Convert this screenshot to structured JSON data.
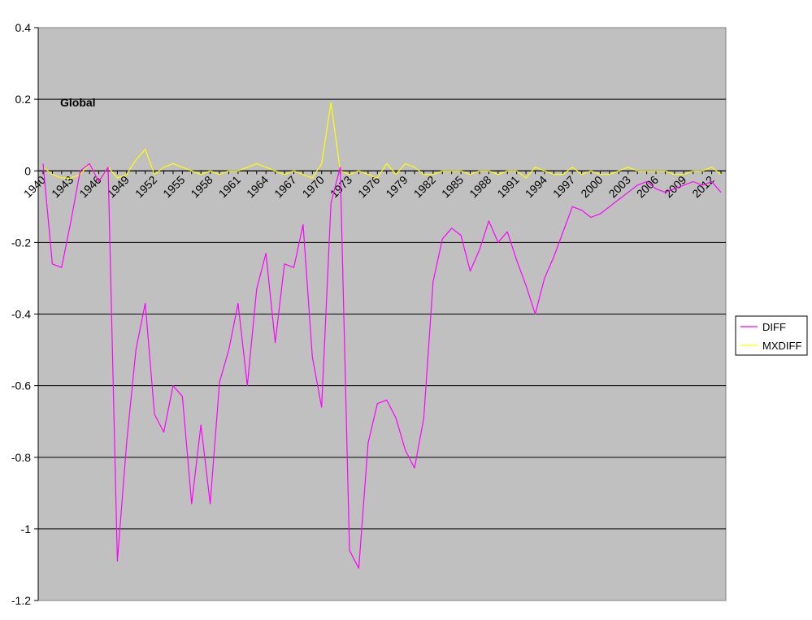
{
  "chart_data": {
    "type": "line",
    "title": "Global",
    "xlabel": "",
    "ylabel": "",
    "ylim": [
      -1.2,
      0.4
    ],
    "yticks": [
      0.4,
      0.2,
      0,
      -0.2,
      -0.4,
      -0.6,
      -0.8,
      -1,
      -1.2
    ],
    "ytick_labels": [
      "0.4",
      "0.2",
      "0",
      "-0.2",
      "-0.4",
      "-0.6",
      "-0.8",
      "-1",
      "-1.2"
    ],
    "x": [
      1940,
      1941,
      1942,
      1943,
      1944,
      1945,
      1946,
      1947,
      1948,
      1949,
      1950,
      1951,
      1952,
      1953,
      1954,
      1955,
      1956,
      1957,
      1958,
      1959,
      1960,
      1961,
      1962,
      1963,
      1964,
      1965,
      1966,
      1967,
      1968,
      1969,
      1970,
      1971,
      1972,
      1973,
      1974,
      1975,
      1976,
      1977,
      1978,
      1979,
      1980,
      1981,
      1982,
      1983,
      1984,
      1985,
      1986,
      1987,
      1988,
      1989,
      1990,
      1991,
      1992,
      1993,
      1994,
      1995,
      1996,
      1997,
      1998,
      1999,
      2000,
      2001,
      2002,
      2003,
      2004,
      2005,
      2006,
      2007,
      2008,
      2009,
      2010,
      2011,
      2012,
      2013
    ],
    "xticks": [
      1940,
      1943,
      1946,
      1949,
      1952,
      1955,
      1958,
      1961,
      1964,
      1967,
      1970,
      1973,
      1976,
      1979,
      1982,
      1985,
      1988,
      1991,
      1994,
      1997,
      2000,
      2003,
      2006,
      2009,
      2012
    ],
    "xtick_labels": [
      "1940",
      "1943",
      "1946",
      "1949",
      "1952",
      "1955",
      "1958",
      "1961",
      "1964",
      "1967",
      "1970",
      "1973",
      "1976",
      "1979",
      "1982",
      "1985",
      "1988",
      "1991",
      "1994",
      "1997",
      "2000",
      "2003",
      "2006",
      "2009",
      "2012"
    ],
    "series": [
      {
        "name": "DIFF",
        "color": "#ff00ff",
        "values": [
          0.02,
          -0.26,
          -0.27,
          -0.14,
          0.0,
          0.02,
          -0.03,
          0.01,
          -1.09,
          -0.76,
          -0.5,
          -0.37,
          -0.68,
          -0.73,
          -0.6,
          -0.63,
          -0.93,
          -0.71,
          -0.93,
          -0.59,
          -0.5,
          -0.37,
          -0.6,
          -0.33,
          -0.23,
          -0.48,
          -0.26,
          -0.27,
          -0.15,
          -0.52,
          -0.66,
          -0.09,
          0.01,
          -1.06,
          -1.11,
          -0.76,
          -0.65,
          -0.64,
          -0.69,
          -0.78,
          -0.83,
          -0.69,
          -0.31,
          -0.19,
          -0.16,
          -0.18,
          -0.28,
          -0.22,
          -0.14,
          -0.2,
          -0.17,
          -0.25,
          -0.32,
          -0.4,
          -0.3,
          -0.24,
          -0.17,
          -0.1,
          -0.11,
          -0.13,
          -0.12,
          -0.1,
          -0.08,
          -0.06,
          -0.04,
          -0.03,
          -0.05,
          -0.06,
          -0.05,
          -0.04,
          -0.03,
          -0.04,
          -0.03,
          -0.06
        ]
      },
      {
        "name": "MXDIFF",
        "color": "#ffff00",
        "values": [
          0.01,
          -0.01,
          -0.02,
          -0.02,
          -0.01,
          0.02,
          -0.03,
          0.01,
          -0.02,
          -0.01,
          0.03,
          0.06,
          -0.01,
          0.01,
          0.02,
          0.01,
          0.0,
          -0.01,
          0.0,
          -0.01,
          0.0,
          0.0,
          0.01,
          0.02,
          0.01,
          0.0,
          -0.01,
          0.0,
          -0.01,
          -0.02,
          0.02,
          0.19,
          0.0,
          -0.01,
          0.0,
          -0.01,
          -0.02,
          0.02,
          -0.01,
          0.02,
          0.01,
          -0.01,
          -0.01,
          0.0,
          0.0,
          0.0,
          -0.01,
          0.0,
          0.0,
          -0.01,
          0.0,
          0.0,
          -0.02,
          0.01,
          0.0,
          -0.01,
          -0.01,
          0.01,
          -0.01,
          0.0,
          -0.01,
          -0.01,
          0.0,
          0.01,
          0.0,
          0.0,
          0.0,
          0.0,
          -0.01,
          -0.01,
          0.0,
          0.0,
          0.01,
          -0.01
        ]
      }
    ],
    "grid": true,
    "legend_position": "right",
    "colors": {
      "plot_background": "#c0c0c0",
      "gridline": "#000000",
      "page_background": "#ffffff"
    }
  }
}
